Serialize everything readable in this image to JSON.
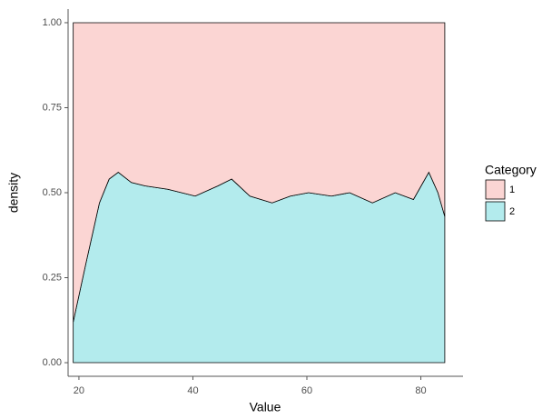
{
  "chart_data": {
    "type": "area",
    "stacked": "fill",
    "x_label": "Value",
    "y_label": "density",
    "x": [
      19.0,
      21.2,
      23.6,
      25.3,
      26.9,
      29.2,
      31.6,
      35.6,
      40.4,
      44.4,
      46.8,
      50.0,
      53.9,
      57.1,
      60.3,
      64.3,
      67.5,
      71.5,
      75.5,
      78.7,
      81.4,
      83.0,
      84.2
    ],
    "series": [
      {
        "name": "1",
        "color": "#fbd5d3",
        "values": [
          0.88,
          0.71,
          0.53,
          0.46,
          0.44,
          0.47,
          0.48,
          0.49,
          0.51,
          0.48,
          0.46,
          0.51,
          0.53,
          0.51,
          0.5,
          0.51,
          0.5,
          0.53,
          0.5,
          0.52,
          0.44,
          0.5,
          0.57
        ]
      },
      {
        "name": "2",
        "color": "#b3ebed",
        "values": [
          0.12,
          0.29,
          0.47,
          0.54,
          0.56,
          0.53,
          0.52,
          0.51,
          0.49,
          0.52,
          0.54,
          0.49,
          0.47,
          0.49,
          0.5,
          0.49,
          0.5,
          0.47,
          0.5,
          0.48,
          0.56,
          0.5,
          0.43
        ]
      }
    ],
    "legend_title": "Category",
    "xlim": [
      18.1,
      87.4
    ],
    "xticks": [
      20,
      40,
      60,
      80
    ],
    "ylim": [
      -0.04,
      1.04
    ],
    "yticks": [
      {
        "value": 0,
        "label": "0.00"
      },
      {
        "value": 0.25,
        "label": "0.25"
      },
      {
        "value": 0.5,
        "label": "0.50"
      },
      {
        "value": 0.75,
        "label": "0.75"
      },
      {
        "value": 1,
        "label": "1.00"
      }
    ]
  }
}
